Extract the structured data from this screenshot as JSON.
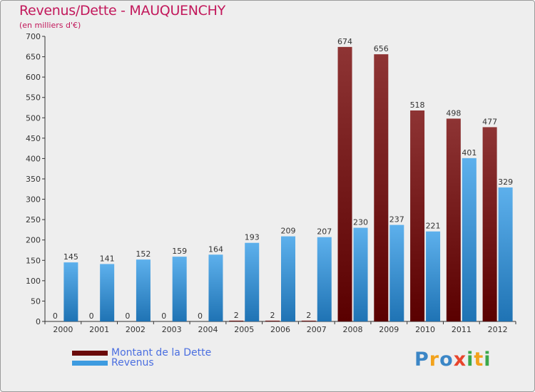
{
  "chart_data": {
    "type": "bar",
    "title": "Revenus/Dette - MAUQUENCHY",
    "subtitle": "(en milliers d'€)",
    "categories": [
      "2000",
      "2001",
      "2002",
      "2003",
      "2004",
      "2005",
      "2006",
      "2007",
      "2008",
      "2009",
      "2010",
      "2011",
      "2012"
    ],
    "series": [
      {
        "name": "Montant de la Dette",
        "color": "#7a1a1a",
        "values": [
          0,
          0,
          0,
          0,
          0,
          2,
          2,
          2,
          674,
          656,
          518,
          498,
          477
        ]
      },
      {
        "name": "Revenus",
        "color": "#3d9be0",
        "values": [
          145,
          141,
          152,
          159,
          164,
          193,
          209,
          207,
          230,
          237,
          221,
          401,
          329
        ]
      }
    ],
    "ylim": [
      0,
      700
    ],
    "yticks": [
      0,
      50,
      100,
      150,
      200,
      250,
      300,
      350,
      400,
      450,
      500,
      550,
      600,
      650,
      700
    ],
    "grid": false,
    "legend_position": "bottom-left"
  },
  "logo": {
    "letters": [
      {
        "ch": "P",
        "color": "#3b86c6"
      },
      {
        "ch": "r",
        "color": "#f2a21c"
      },
      {
        "ch": "o",
        "color": "#3b86c6"
      },
      {
        "ch": "x",
        "color": "#e8452c"
      },
      {
        "ch": "i",
        "color": "#3aa84a"
      },
      {
        "ch": "t",
        "color": "#f2a21c"
      },
      {
        "ch": "i",
        "color": "#3aa84a"
      }
    ]
  }
}
